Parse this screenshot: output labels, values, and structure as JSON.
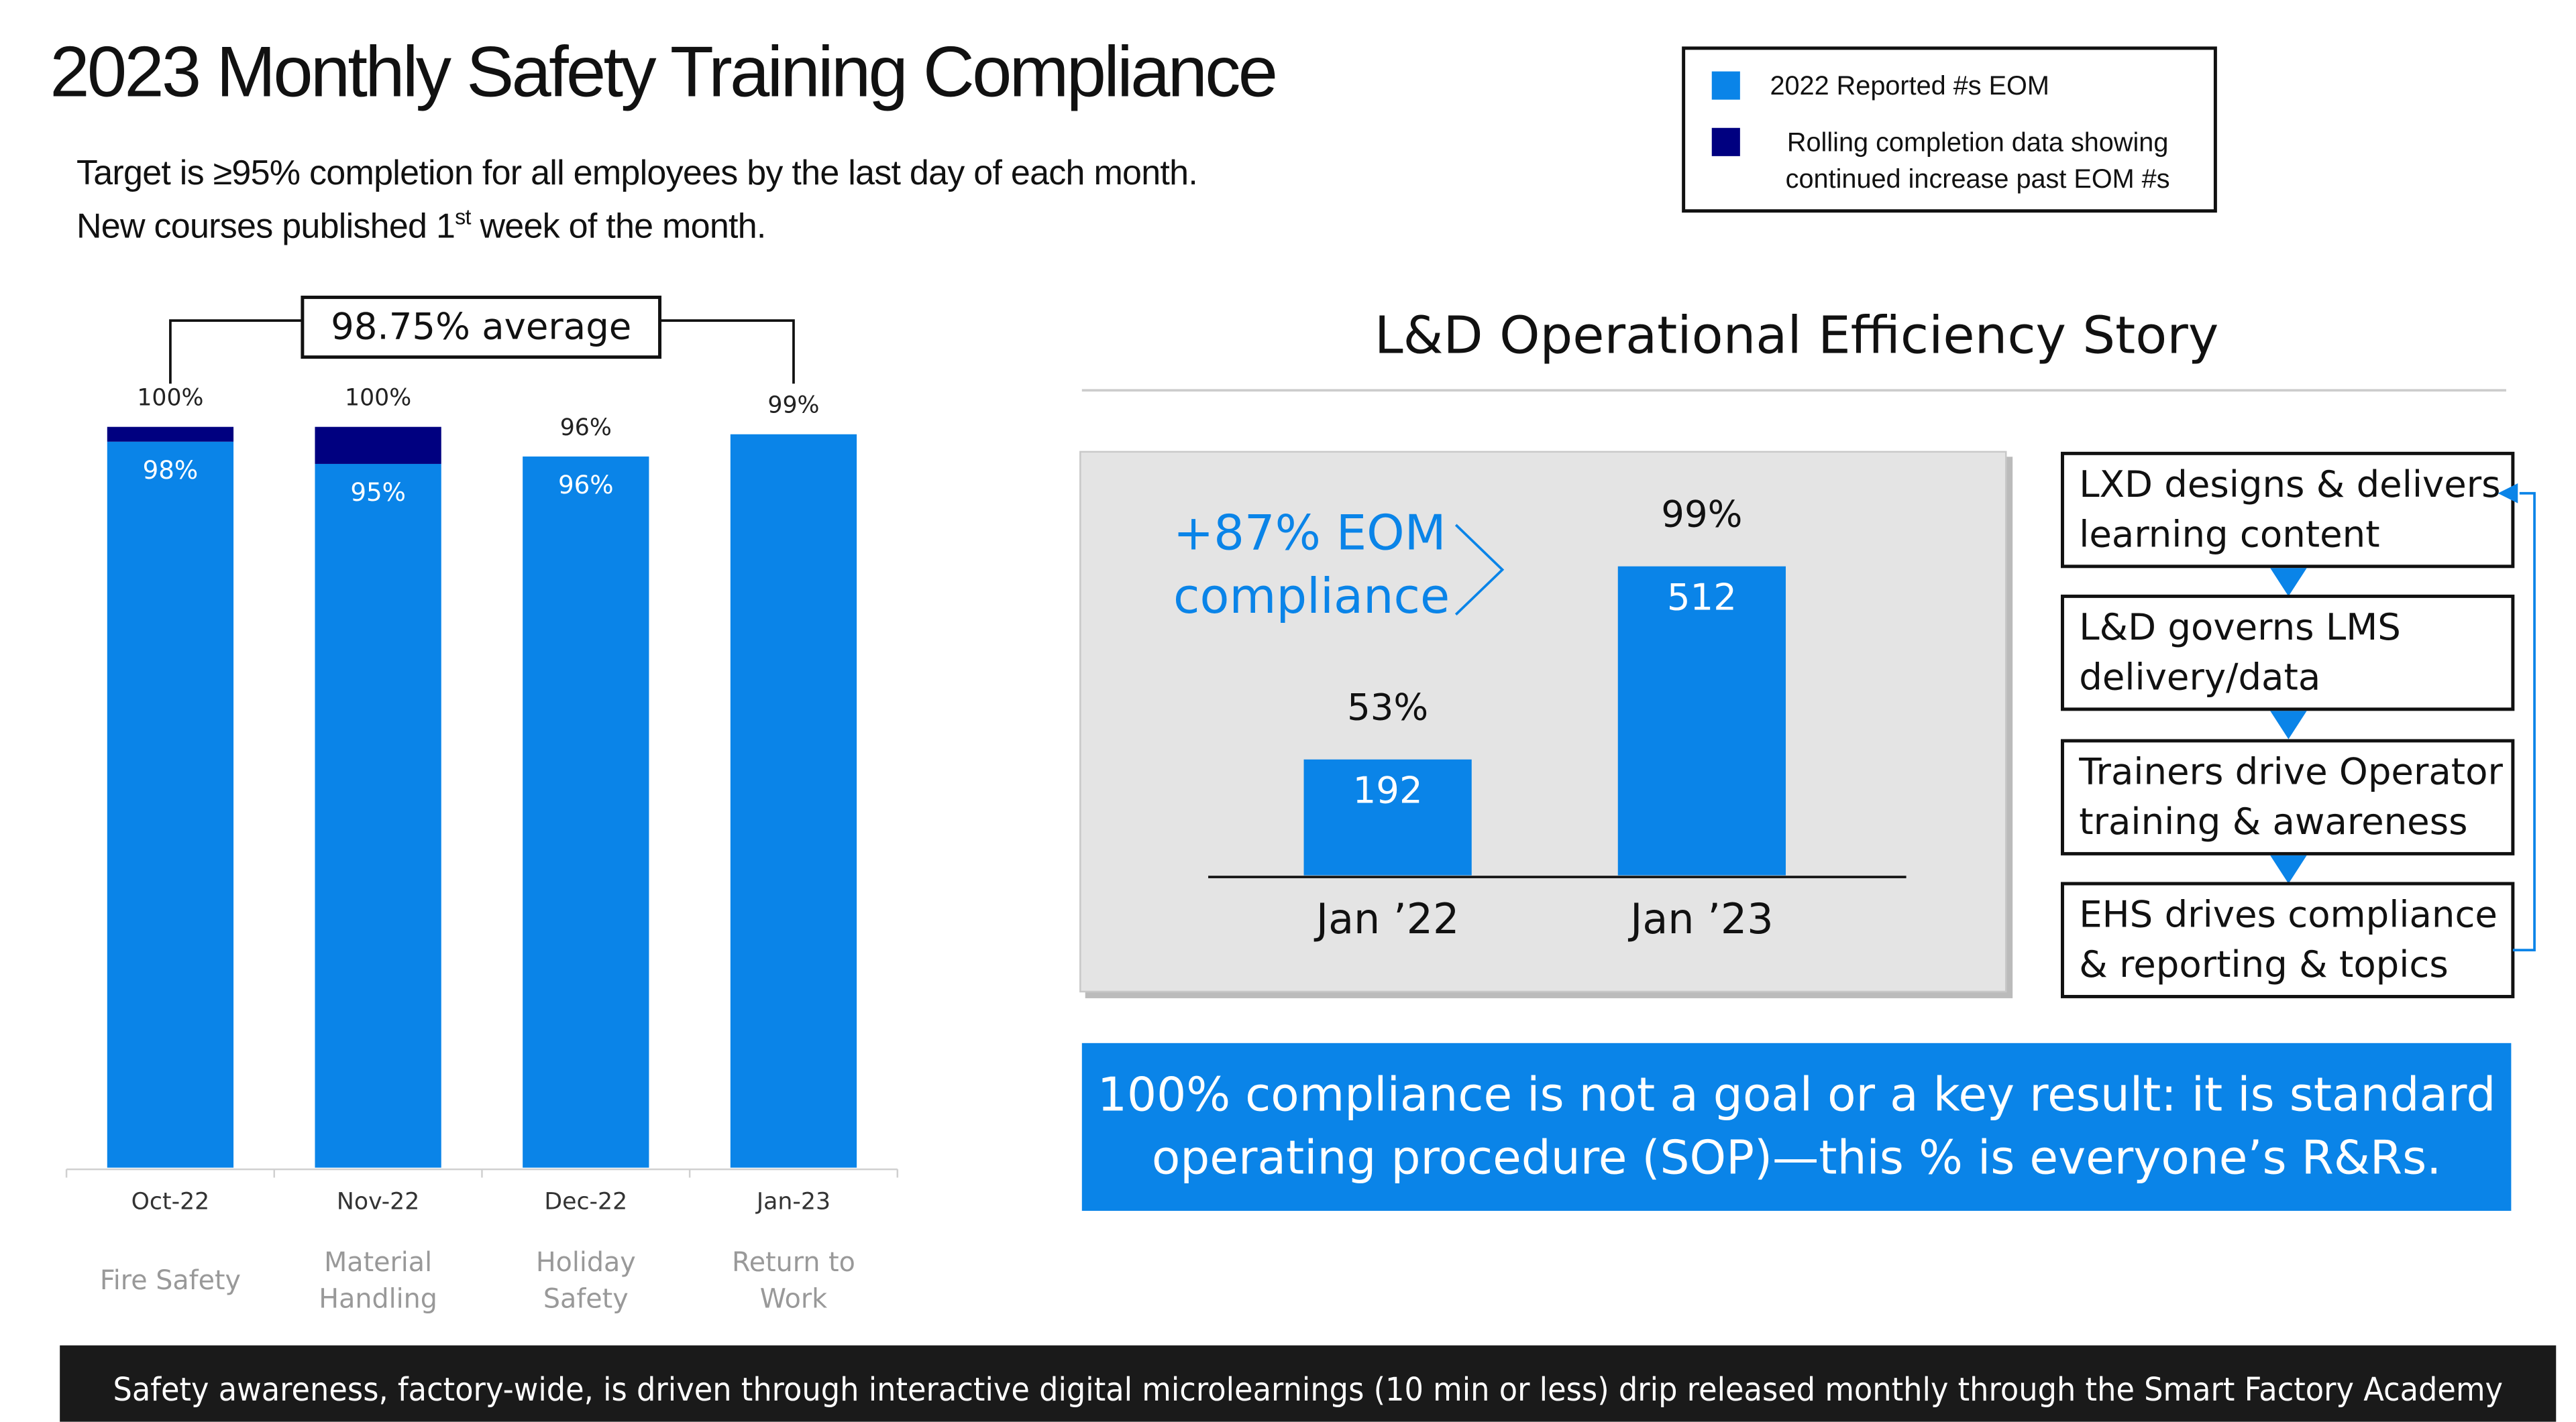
{
  "title": "2023 Monthly Safety Training Compliance",
  "subtitle": {
    "line1": "Target is ≥95% completion for all employees by the last day of each month.",
    "line2": {
      "text": "New courses published 1",
      "superscript": "st",
      "rest": " week of the month."
    }
  },
  "chart_data": [
    {
      "type": "stacked_bar",
      "categories": [
        "Oct-22",
        "Nov-22",
        "Dec-22",
        "Jan-23"
      ],
      "category_descriptions": [
        [
          "Fire Safety"
        ],
        [
          "Material",
          "Handling"
        ],
        [
          "Holiday",
          "Safety"
        ],
        [
          "Return to",
          "Work"
        ]
      ],
      "series": [
        {
          "name": "2022 Reported #s EOM",
          "color": "#0a84e8",
          "values": [
            98,
            95,
            96,
            99
          ],
          "value_labels": [
            "98%",
            "95%",
            "96%",
            null
          ]
        },
        {
          "name": "Rolling completion data showing continued increase past EOM #s",
          "color": "#000080",
          "values": [
            2,
            5,
            0,
            0
          ]
        }
      ],
      "totals": [
        100,
        100,
        96,
        99
      ],
      "total_labels": [
        "100%",
        "100%",
        "96%",
        "99%"
      ],
      "ylim": [
        0,
        100
      ],
      "annotation": "98.75% average"
    },
    {
      "type": "bar",
      "title": "L&D Operational Efficiency Story",
      "categories": [
        "Jan ’22",
        "Jan ’23"
      ],
      "values": [
        192,
        512
      ],
      "color": "#0a84e8",
      "compliance": [
        53,
        99
      ],
      "compliance_labels": [
        "53%",
        "99%"
      ],
      "annotation": [
        "+87% EOM",
        "compliance"
      ],
      "ylim": [
        0,
        600
      ]
    }
  ],
  "flow": [
    [
      "LXD designs & delivers",
      "learning content"
    ],
    [
      "L&D governs LMS",
      "delivery/data"
    ],
    [
      "Trainers drive Operator",
      "training & awareness"
    ],
    [
      "EHS drives compliance",
      "& reporting & topics"
    ]
  ],
  "callout": [
    "100% compliance is not a goal or a key result: it is standard",
    "operating procedure (SOP)—this % is everyone’s R&Rs."
  ],
  "footer": "Safety awareness, factory-wide, is driven through interactive digital microlearnings (10 min or less) drip released monthly through the Smart Factory Academy"
}
